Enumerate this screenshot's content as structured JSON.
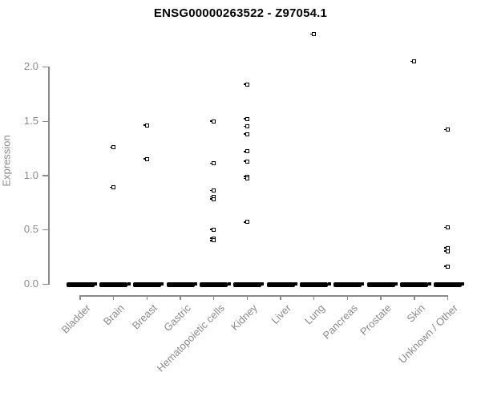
{
  "chart_data": {
    "type": "scatter",
    "title": "ENSG00000263522 - Z97054.1",
    "ylabel": "Expression",
    "xlabel": "",
    "ylim": [
      0,
      2.35
    ],
    "grid": false,
    "legend": "none",
    "marker": "open-square",
    "yticks": [
      "0.0",
      "0.5",
      "1.0",
      "1.5",
      "2.0"
    ],
    "ytick_values": [
      0.0,
      0.5,
      1.0,
      1.5,
      2.0
    ],
    "categories": [
      "Bladder",
      "Brain",
      "Breast",
      "Gastric",
      "Hematopoietic cells",
      "Kidney",
      "Liver",
      "Lung",
      "Pancreas",
      "Prostate",
      "Skin",
      "Unknown / Other"
    ],
    "series": [
      {
        "category": "Bladder",
        "values": [],
        "zero_cluster": true
      },
      {
        "category": "Brain",
        "values": [
          1.26,
          0.89
        ],
        "zero_cluster": true
      },
      {
        "category": "Breast",
        "values": [
          1.46,
          1.15
        ],
        "zero_cluster": true
      },
      {
        "category": "Gastric",
        "values": [],
        "zero_cluster": true
      },
      {
        "category": "Hematopoietic cells",
        "values": [
          1.5,
          1.11,
          0.86,
          0.8,
          0.78,
          0.5,
          0.42,
          0.4
        ],
        "zero_cluster": true
      },
      {
        "category": "Kidney",
        "values": [
          1.84,
          1.52,
          1.45,
          1.38,
          1.22,
          1.13,
          0.99,
          0.97,
          0.57
        ],
        "zero_cluster": true
      },
      {
        "category": "Liver",
        "values": [],
        "zero_cluster": true
      },
      {
        "category": "Lung",
        "values": [
          2.3
        ],
        "zero_cluster": true
      },
      {
        "category": "Pancreas",
        "values": [],
        "zero_cluster": true
      },
      {
        "category": "Prostate",
        "values": [],
        "zero_cluster": true
      },
      {
        "category": "Skin",
        "values": [
          2.05
        ],
        "zero_cluster": true
      },
      {
        "category": "Unknown / Other",
        "values": [
          1.42,
          0.52,
          0.33,
          0.3,
          0.16
        ],
        "zero_cluster": true
      }
    ],
    "colors": {
      "marker": "#000000",
      "axis": "#8a8a8a",
      "tick_label": "#8a8a8a",
      "title": "#000000",
      "background": "#ffffff"
    }
  }
}
